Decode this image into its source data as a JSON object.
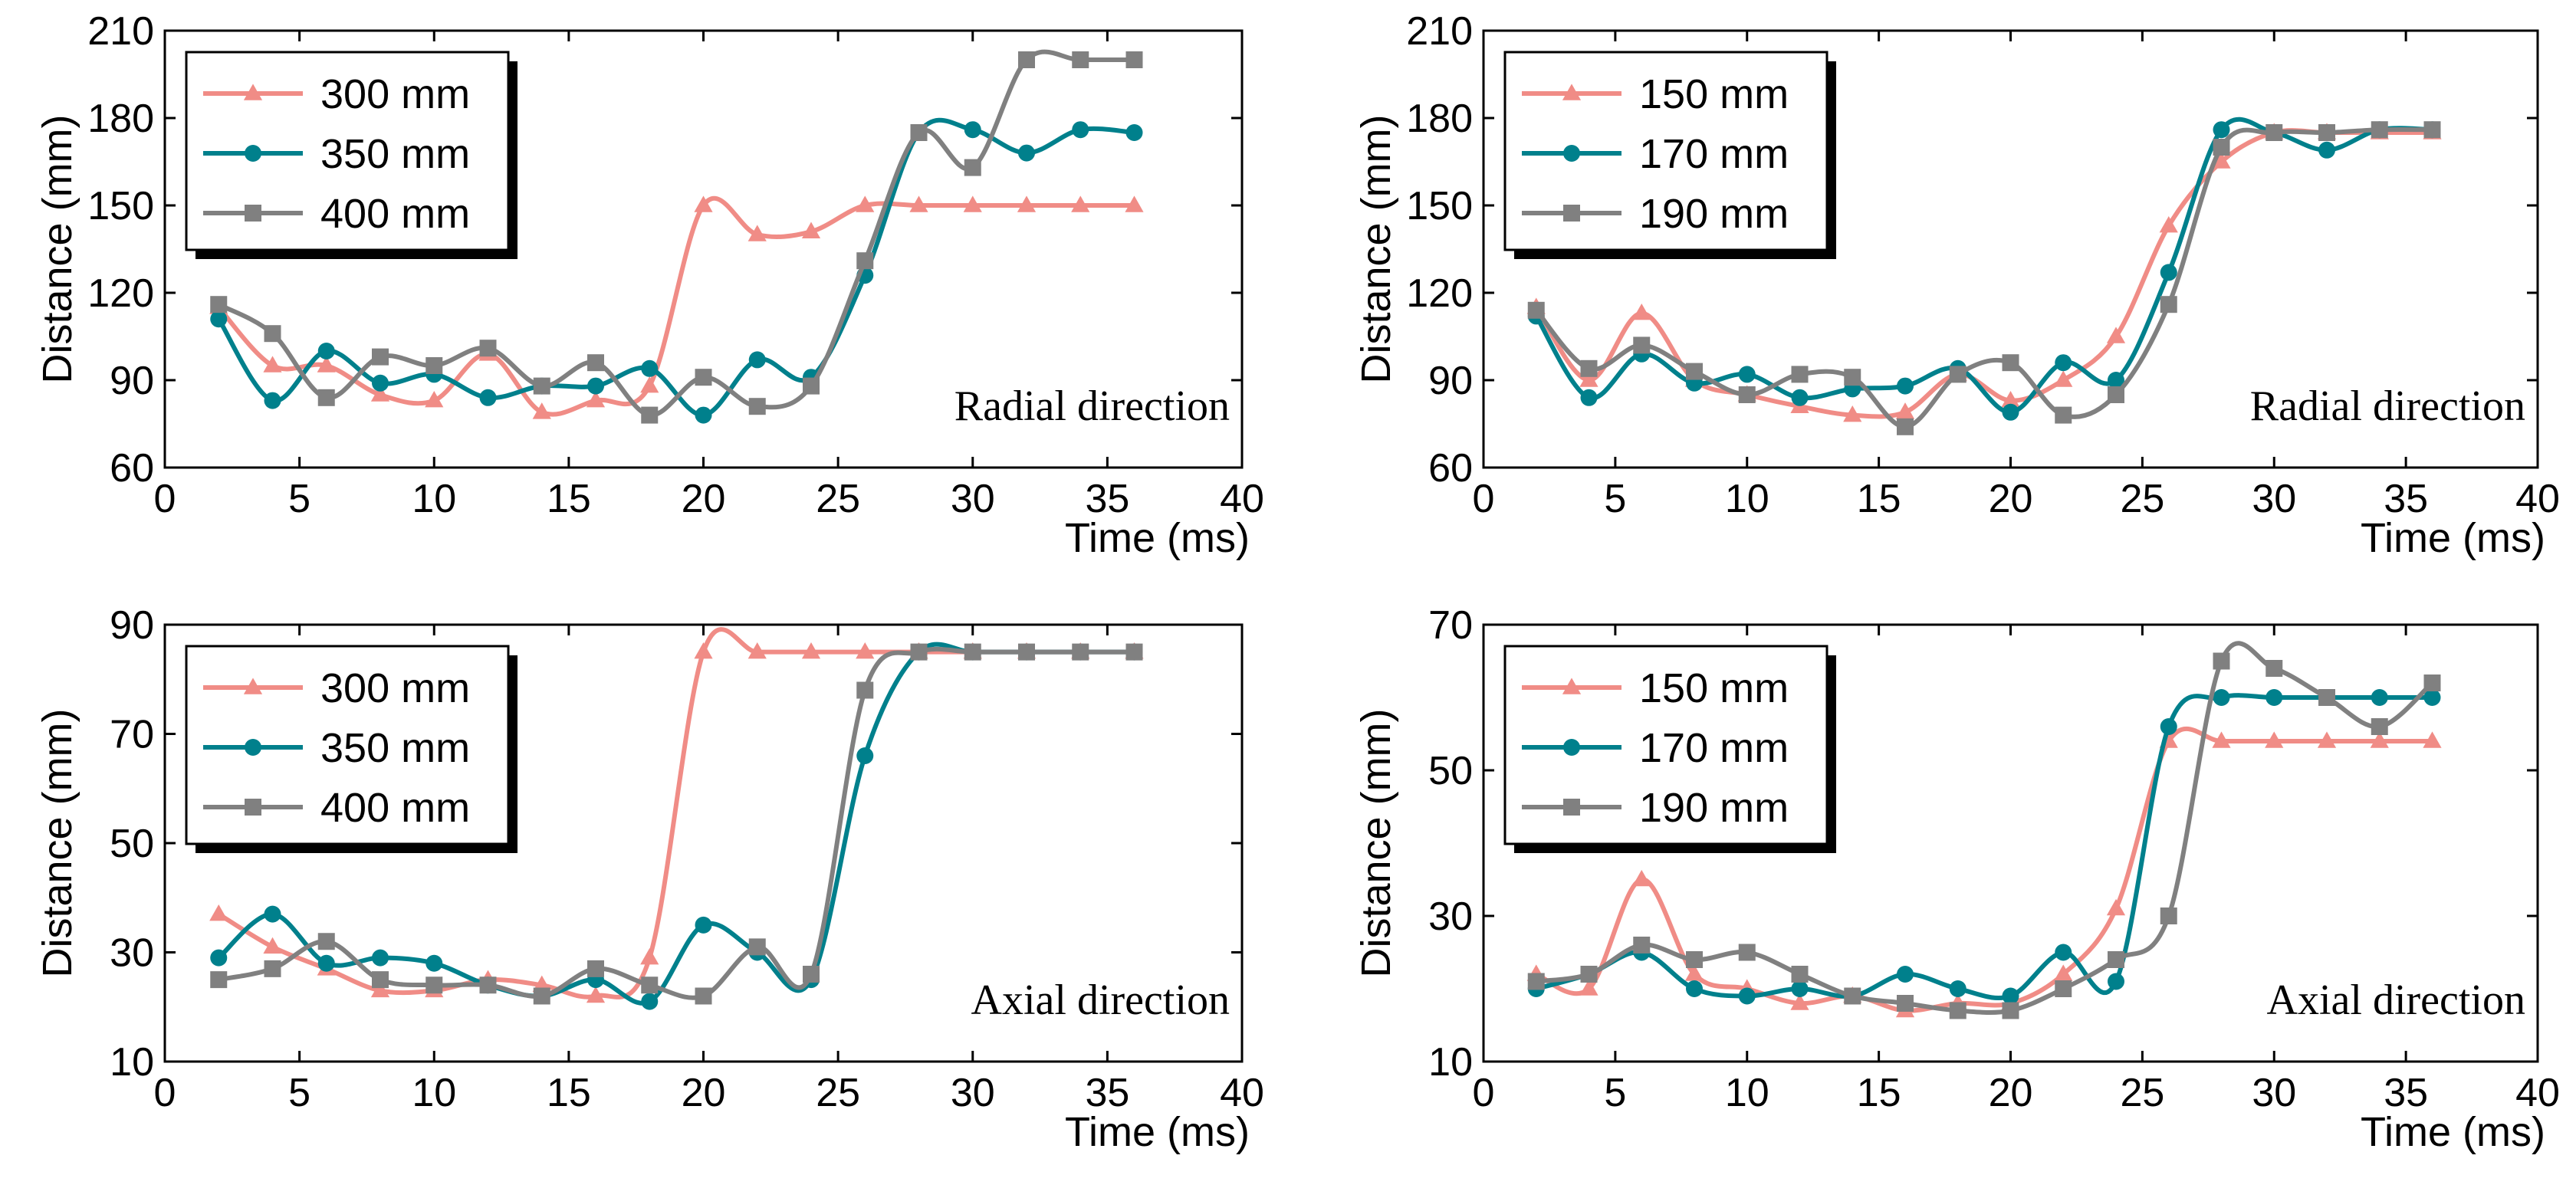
{
  "chart_data": [
    {
      "type": "line",
      "panel": "top-left",
      "xlabel": "Time (ms)",
      "ylabel": "Distance (mm)",
      "xlim": [
        0,
        40
      ],
      "ylim": [
        60,
        210
      ],
      "xticks": [
        0,
        5,
        10,
        15,
        20,
        25,
        30,
        35,
        40
      ],
      "yticks": [
        60,
        90,
        120,
        150,
        180,
        210
      ],
      "annotation": "Radial direction",
      "legend_position": "top-left",
      "series": [
        {
          "name": "300 mm",
          "color": "#F08C86",
          "marker": "triangle",
          "x": [
            2,
            4,
            6,
            8,
            10,
            12,
            14,
            16,
            18,
            20,
            22,
            24,
            26,
            28,
            30,
            32,
            34,
            36
          ],
          "values": [
            115,
            95,
            95,
            85,
            83,
            99,
            79,
            83,
            88,
            150,
            140,
            141,
            150,
            150,
            150,
            150,
            150,
            150
          ]
        },
        {
          "name": "350 mm",
          "color": "#00808C",
          "marker": "circle",
          "x": [
            2,
            4,
            6,
            8,
            10,
            12,
            14,
            16,
            18,
            20,
            22,
            24,
            26,
            28,
            30,
            32,
            34,
            36
          ],
          "values": [
            111,
            83,
            100,
            89,
            92,
            84,
            88,
            88,
            94,
            78,
            97,
            91,
            126,
            175,
            176,
            168,
            176,
            175
          ]
        },
        {
          "name": "400 mm",
          "color": "#808080",
          "marker": "square",
          "x": [
            2,
            4,
            6,
            8,
            10,
            12,
            14,
            16,
            18,
            20,
            22,
            24,
            26,
            28,
            30,
            32,
            34,
            36
          ],
          "values": [
            116,
            106,
            84,
            98,
            95,
            101,
            88,
            96,
            78,
            91,
            81,
            88,
            131,
            175,
            163,
            200,
            200,
            200
          ]
        }
      ]
    },
    {
      "type": "line",
      "panel": "top-right",
      "xlabel": "Time (ms)",
      "ylabel": "Distance (mm)",
      "xlim": [
        0,
        40
      ],
      "ylim": [
        60,
        210
      ],
      "xticks": [
        0,
        5,
        10,
        15,
        20,
        25,
        30,
        35,
        40
      ],
      "yticks": [
        60,
        90,
        120,
        150,
        180,
        210
      ],
      "annotation": "Radial direction",
      "legend_position": "top-left",
      "series": [
        {
          "name": "150 mm",
          "color": "#F08C86",
          "marker": "triangle",
          "x": [
            2,
            4,
            6,
            8,
            10,
            12,
            14,
            16,
            18,
            20,
            22,
            24,
            26,
            28,
            30,
            32,
            34,
            36
          ],
          "values": [
            115,
            90,
            113,
            90,
            85,
            81,
            78,
            79,
            92,
            83,
            90,
            105,
            143,
            165,
            175,
            175,
            175,
            175
          ]
        },
        {
          "name": "170 mm",
          "color": "#00808C",
          "marker": "circle",
          "x": [
            2,
            4,
            6,
            8,
            10,
            12,
            14,
            16,
            18,
            20,
            22,
            24,
            26,
            28,
            30,
            32,
            34,
            36
          ],
          "values": [
            112,
            84,
            99,
            89,
            92,
            84,
            87,
            88,
            94,
            79,
            96,
            90,
            127,
            176,
            175,
            169,
            176,
            176
          ]
        },
        {
          "name": "190 mm",
          "color": "#808080",
          "marker": "square",
          "x": [
            2,
            4,
            6,
            8,
            10,
            12,
            14,
            16,
            18,
            20,
            22,
            24,
            26,
            28,
            30,
            32,
            34,
            36
          ],
          "values": [
            114,
            94,
            102,
            93,
            85,
            92,
            91,
            74,
            92,
            96,
            78,
            85,
            116,
            170,
            175,
            175,
            176,
            176
          ]
        }
      ]
    },
    {
      "type": "line",
      "panel": "bottom-left",
      "xlabel": "Time (ms)",
      "ylabel": "Distance (mm)",
      "xlim": [
        0,
        40
      ],
      "ylim": [
        10,
        90
      ],
      "xticks": [
        0,
        5,
        10,
        15,
        20,
        25,
        30,
        35,
        40
      ],
      "yticks": [
        10,
        30,
        50,
        70,
        90
      ],
      "annotation": "Axial direction",
      "legend_position": "top-left",
      "series": [
        {
          "name": "300 mm",
          "color": "#F08C86",
          "marker": "triangle",
          "x": [
            2,
            4,
            6,
            8,
            10,
            12,
            14,
            16,
            18,
            20,
            22,
            24,
            26,
            28,
            30,
            32,
            34,
            36
          ],
          "values": [
            37,
            31,
            27,
            23,
            23,
            25,
            24,
            22,
            29,
            85,
            85,
            85,
            85,
            85,
            85,
            85,
            85,
            85
          ]
        },
        {
          "name": "350 mm",
          "color": "#00808C",
          "marker": "circle",
          "x": [
            2,
            4,
            6,
            8,
            10,
            12,
            14,
            16,
            18,
            20,
            22,
            24,
            26,
            28,
            30,
            32,
            34,
            36
          ],
          "values": [
            29,
            37,
            28,
            29,
            28,
            24,
            22,
            25,
            21,
            35,
            30,
            25,
            66,
            85,
            85,
            85,
            85,
            85
          ]
        },
        {
          "name": "400 mm",
          "color": "#808080",
          "marker": "square",
          "x": [
            2,
            4,
            6,
            8,
            10,
            12,
            14,
            16,
            18,
            20,
            22,
            24,
            26,
            28,
            30,
            32,
            34,
            36
          ],
          "values": [
            25,
            27,
            32,
            25,
            24,
            24,
            22,
            27,
            24,
            22,
            31,
            26,
            78,
            85,
            85,
            85,
            85,
            85
          ]
        }
      ]
    },
    {
      "type": "line",
      "panel": "bottom-right",
      "xlabel": "Time (ms)",
      "ylabel": "Distance (mm)",
      "xlim": [
        0,
        40
      ],
      "ylim": [
        10,
        70
      ],
      "xticks": [
        0,
        5,
        10,
        15,
        20,
        25,
        30,
        35,
        40
      ],
      "yticks": [
        10,
        30,
        50,
        70
      ],
      "annotation": "Axial direction",
      "legend_position": "top-left",
      "series": [
        {
          "name": "150 mm",
          "color": "#F08C86",
          "marker": "triangle",
          "x": [
            2,
            4,
            6,
            8,
            10,
            12,
            14,
            16,
            18,
            20,
            22,
            24,
            26,
            28,
            30,
            32,
            34,
            36
          ],
          "values": [
            22,
            20,
            35,
            22,
            20,
            18,
            19,
            17,
            18,
            18,
            22,
            31,
            54,
            54,
            54,
            54,
            54,
            54
          ]
        },
        {
          "name": "170 mm",
          "color": "#00808C",
          "marker": "circle",
          "x": [
            2,
            4,
            6,
            8,
            10,
            12,
            14,
            16,
            18,
            20,
            22,
            24,
            26,
            28,
            30,
            32,
            34,
            36
          ],
          "values": [
            20,
            22,
            25,
            20,
            19,
            20,
            19,
            22,
            20,
            19,
            25,
            21,
            56,
            60,
            60,
            60,
            60,
            60
          ]
        },
        {
          "name": "190 mm",
          "color": "#808080",
          "marker": "square",
          "x": [
            2,
            4,
            6,
            8,
            10,
            12,
            14,
            16,
            18,
            20,
            22,
            24,
            26,
            28,
            30,
            32,
            34,
            36
          ],
          "values": [
            21,
            22,
            26,
            24,
            25,
            22,
            19,
            18,
            17,
            17,
            20,
            24,
            30,
            65,
            64,
            60,
            56,
            62
          ]
        }
      ]
    }
  ]
}
